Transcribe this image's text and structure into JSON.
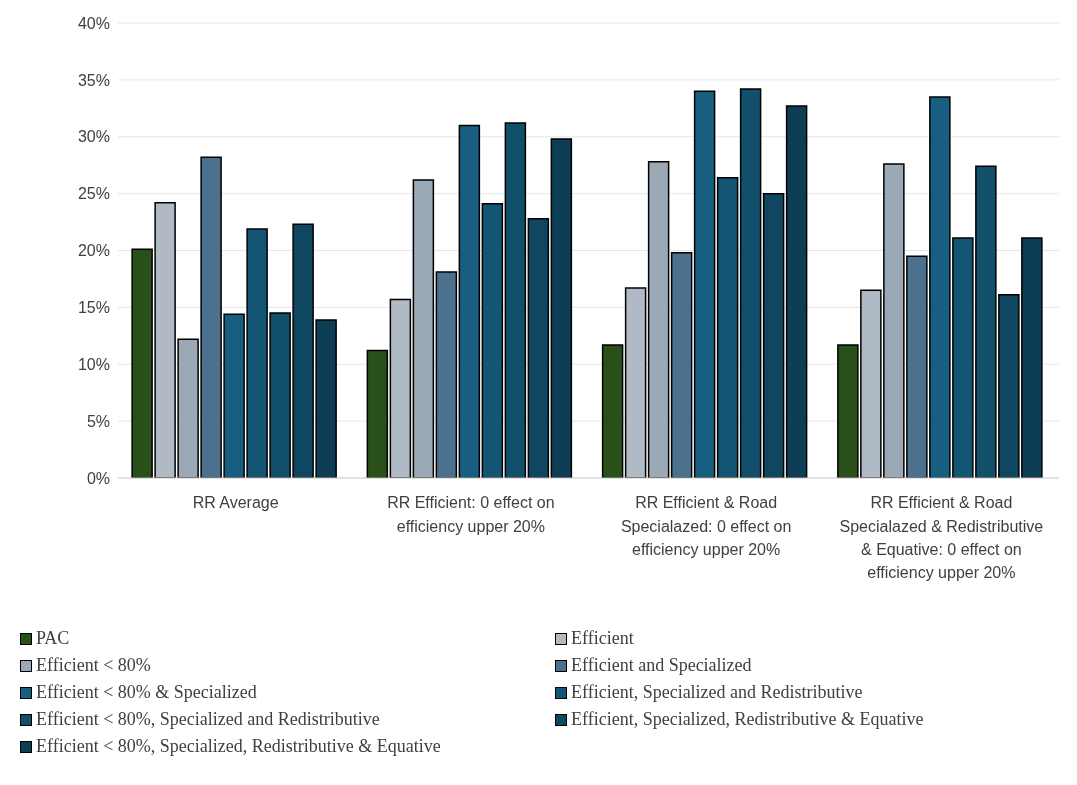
{
  "chart_data": {
    "type": "bar",
    "categories": [
      "RR Average",
      "RR Efficient: 0 effect on efficiency upper 20%",
      "RR Efficient & Road Specialazed: 0 effect on efficiency upper 20%",
      "RR Efficient & Road Specialazed & Redistributive & Equative: 0 effect on efficiency upper 20%"
    ],
    "series": [
      {
        "name": "PAC",
        "color": "#2a5019",
        "values": [
          20.1,
          11.2,
          11.7,
          11.7
        ]
      },
      {
        "name": "Efficient",
        "color": "#b0bac5",
        "values": [
          24.2,
          15.7,
          16.7,
          16.5
        ]
      },
      {
        "name": "Efficient < 80%",
        "color": "#9aa9b5",
        "values": [
          12.2,
          26.2,
          27.8,
          27.6
        ]
      },
      {
        "name": "Efficient and Specialized",
        "color": "#4c718f",
        "values": [
          28.2,
          18.1,
          19.8,
          19.5
        ]
      },
      {
        "name": "Efficient < 80% & Specialized",
        "color": "#175e80",
        "values": [
          14.4,
          31.0,
          34.0,
          33.5
        ]
      },
      {
        "name": "Efficient, Specialized and Redistributive",
        "color": "#135572",
        "values": [
          21.9,
          24.1,
          26.4,
          21.1
        ]
      },
      {
        "name": "Efficient < 80%, Specialized and Redistributive",
        "color": "#124f6b",
        "values": [
          14.5,
          31.2,
          34.2,
          27.4
        ]
      },
      {
        "name": "Efficient, Specialized, Redistributive & Equative",
        "color": "#0f4660",
        "values": [
          22.3,
          22.8,
          25.0,
          16.1
        ]
      },
      {
        "name": "Efficient < 80%, Specialized, Redistributive & Equative",
        "color": "#0d3e55",
        "values": [
          13.9,
          29.8,
          32.7,
          21.1
        ]
      }
    ],
    "ylim": [
      0,
      40
    ],
    "yticks": [
      {
        "value": 0,
        "label": "0%"
      },
      {
        "value": 5,
        "label": "5%"
      },
      {
        "value": 10,
        "label": "10%"
      },
      {
        "value": 15,
        "label": "15%"
      },
      {
        "value": 20,
        "label": "20%"
      },
      {
        "value": 25,
        "label": "25%"
      },
      {
        "value": 30,
        "label": "30%"
      },
      {
        "value": 35,
        "label": "35%"
      },
      {
        "value": 40,
        "label": "40%"
      }
    ],
    "grid": "y",
    "legend": "bottom"
  }
}
